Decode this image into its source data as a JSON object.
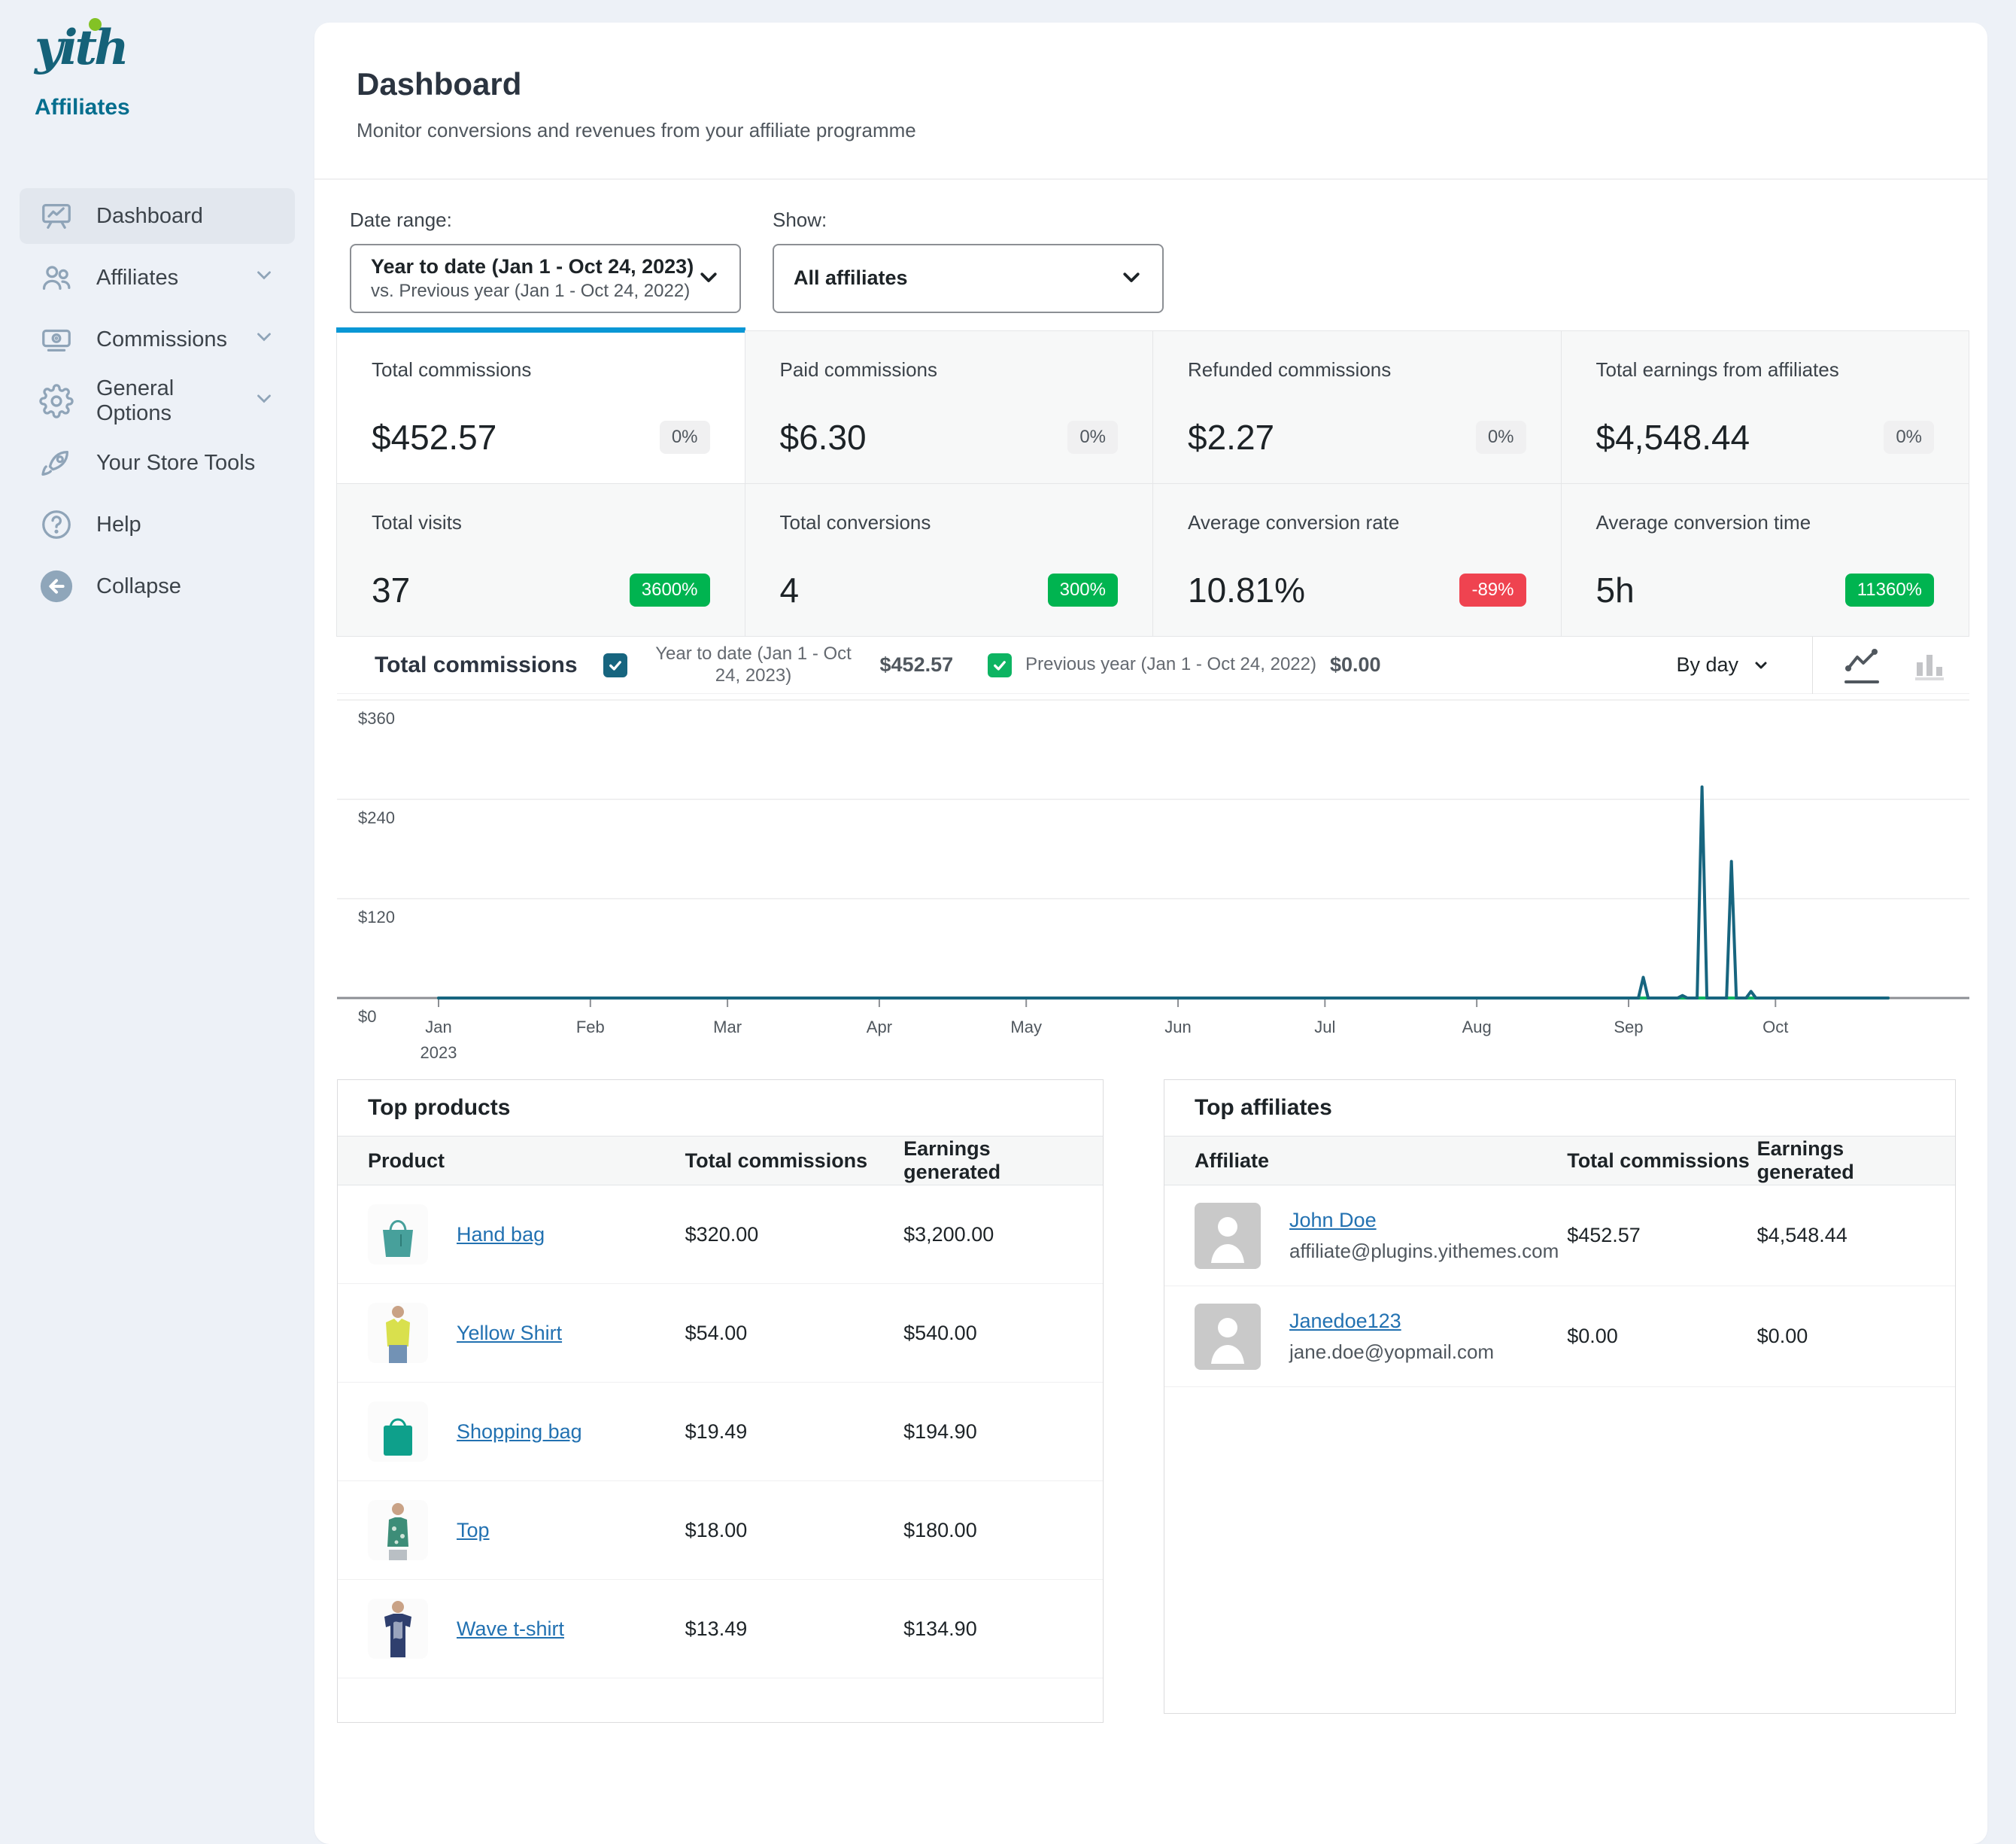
{
  "sidebar": {
    "logo_text": "yith",
    "brand": "Affiliates",
    "items": [
      {
        "label": "Dashboard",
        "icon": "dashboard",
        "active": true,
        "chevron": false
      },
      {
        "label": "Affiliates",
        "icon": "affiliates",
        "active": false,
        "chevron": true
      },
      {
        "label": "Commissions",
        "icon": "commissions",
        "active": false,
        "chevron": true
      },
      {
        "label": "General Options",
        "icon": "gear",
        "active": false,
        "chevron": true
      },
      {
        "label": "Your Store Tools",
        "icon": "rocket",
        "active": false,
        "chevron": false
      },
      {
        "label": "Help",
        "icon": "help",
        "active": false,
        "chevron": false
      },
      {
        "label": "Collapse",
        "icon": "collapse",
        "active": false,
        "chevron": false
      }
    ]
  },
  "header": {
    "title": "Dashboard",
    "subtitle": "Monitor conversions and revenues from your affiliate programme"
  },
  "filters": {
    "date_range_label": "Date range:",
    "date_range_value": "Year to date (Jan 1 - Oct 24, 2023)",
    "date_range_sub": "vs. Previous year (Jan 1 - Oct 24, 2022)",
    "show_label": "Show:",
    "show_value": "All affiliates"
  },
  "stats": [
    {
      "label": "Total commissions",
      "value": "$452.57",
      "badge": "0%",
      "badge_type": "neutral",
      "selected": true
    },
    {
      "label": "Paid commissions",
      "value": "$6.30",
      "badge": "0%",
      "badge_type": "neutral",
      "selected": false
    },
    {
      "label": "Refunded commissions",
      "value": "$2.27",
      "badge": "0%",
      "badge_type": "neutral",
      "selected": false
    },
    {
      "label": "Total earnings from affiliates",
      "value": "$4,548.44",
      "badge": "0%",
      "badge_type": "neutral",
      "selected": false
    },
    {
      "label": "Total visits",
      "value": "37",
      "badge": "3600%",
      "badge_type": "up",
      "selected": false
    },
    {
      "label": "Total conversions",
      "value": "4",
      "badge": "300%",
      "badge_type": "up",
      "selected": false
    },
    {
      "label": "Average conversion rate",
      "value": "10.81%",
      "badge": "-89%",
      "badge_type": "down",
      "selected": false
    },
    {
      "label": "Average conversion time",
      "value": "5h",
      "badge": "11360%",
      "badge_type": "up",
      "selected": false
    }
  ],
  "chart": {
    "title": "Total commissions",
    "interval_label": "By day",
    "legend": [
      {
        "label": "Year to date (Jan 1 - Oct 24, 2023)",
        "value": "$452.57",
        "color": "#17657f",
        "checked": true,
        "wrap": true
      },
      {
        "label": "Previous year (Jan 1 - Oct 24, 2022)",
        "value": "$0.00",
        "color": "#0db462",
        "checked": true,
        "wrap": false
      }
    ]
  },
  "chart_data": {
    "type": "line",
    "title": "Total commissions",
    "unit": "USD",
    "ylim": [
      0,
      360
    ],
    "y_ticks": [
      "$0",
      "$120",
      "$240",
      "$360"
    ],
    "y_gridlines": [
      120,
      240,
      360
    ],
    "x_ticks": [
      "Jan",
      "Feb",
      "Mar",
      "Apr",
      "May",
      "Jun",
      "Jul",
      "Aug",
      "Sep",
      "Oct"
    ],
    "x_tick_year": "2023",
    "x_range": [
      "Jan 1, 2023",
      "Oct 24, 2023"
    ],
    "month_day_offsets": [
      0,
      31,
      59,
      90,
      120,
      151,
      181,
      212,
      243,
      273
    ],
    "total_days": 296,
    "grid": true,
    "legend_position": "top",
    "series": [
      {
        "name": "Year to date (Jan 1 - Oct 24, 2023)",
        "color": "#17657f",
        "points": [
          [
            0,
            0
          ],
          [
            245,
            0
          ],
          [
            246,
            25
          ],
          [
            247,
            0
          ],
          [
            253,
            0
          ],
          [
            254,
            3
          ],
          [
            255,
            0
          ],
          [
            257,
            0
          ],
          [
            258,
            255
          ],
          [
            259,
            0
          ],
          [
            263,
            0
          ],
          [
            264,
            165
          ],
          [
            265,
            0
          ],
          [
            267,
            0
          ],
          [
            268,
            8
          ],
          [
            269,
            0
          ],
          [
            296,
            0
          ]
        ]
      },
      {
        "name": "Previous year (Jan 1 - Oct 24, 2022)",
        "color": "#0db462",
        "points": [
          [
            0,
            0
          ],
          [
            296,
            0
          ]
        ]
      }
    ]
  },
  "top_products": {
    "title": "Top products",
    "columns": [
      "Product",
      "Total commissions",
      "Earnings generated"
    ],
    "rows": [
      {
        "name": "Hand bag",
        "image": "handbag",
        "commissions": "$320.00",
        "earnings": "$3,200.00"
      },
      {
        "name": "Yellow Shirt",
        "image": "yellow_shirt",
        "commissions": "$54.00",
        "earnings": "$540.00"
      },
      {
        "name": "Shopping bag",
        "image": "shopping_bag",
        "commissions": "$19.49",
        "earnings": "$194.90"
      },
      {
        "name": "Top",
        "image": "top",
        "commissions": "$18.00",
        "earnings": "$180.00"
      },
      {
        "name": "Wave t-shirt",
        "image": "wave_tshirt",
        "commissions": "$13.49",
        "earnings": "$134.90"
      }
    ]
  },
  "top_affiliates": {
    "title": "Top affiliates",
    "columns": [
      "Affiliate",
      "Total commissions",
      "Earnings generated"
    ],
    "rows": [
      {
        "name": "John Doe",
        "email": "affiliate@plugins.yithemes.com",
        "commissions": "$452.57",
        "earnings": "$4,548.44"
      },
      {
        "name": "Janedoe123",
        "email": "jane.doe@yopmail.com",
        "commissions": "$0.00",
        "earnings": "$0.00"
      }
    ]
  }
}
